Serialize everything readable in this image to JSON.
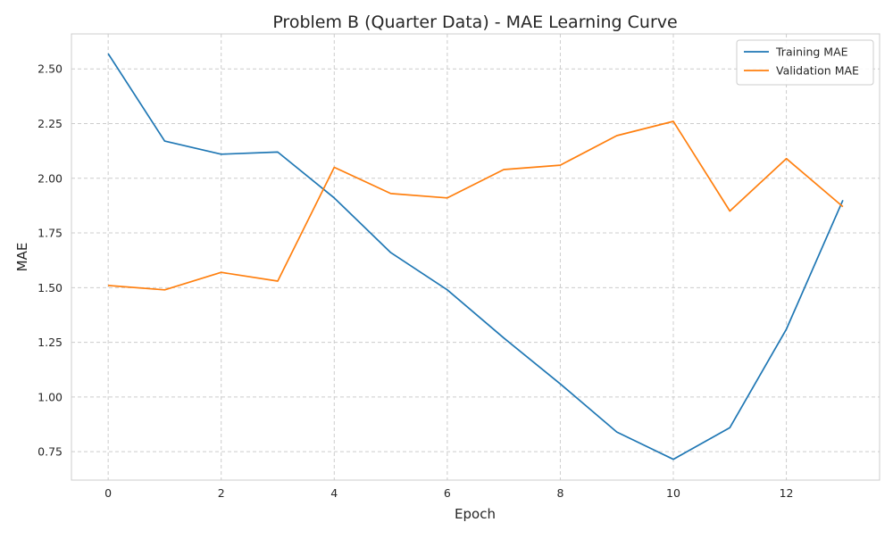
{
  "chart_data": {
    "type": "line",
    "title": "Problem B (Quarter Data) - MAE Learning Curve",
    "xlabel": "Epoch",
    "ylabel": "MAE",
    "x": [
      0,
      1,
      2,
      3,
      4,
      5,
      6,
      7,
      8,
      9,
      10,
      11,
      12,
      13
    ],
    "xlim": [
      -0.65,
      13.65
    ],
    "ylim": [
      0.62,
      2.66
    ],
    "x_ticks": [
      0,
      2,
      4,
      6,
      8,
      10,
      12
    ],
    "x_tick_labels": [
      "0",
      "2",
      "4",
      "6",
      "8",
      "10",
      "12"
    ],
    "y_ticks": [
      0.75,
      1.0,
      1.25,
      1.5,
      1.75,
      2.0,
      2.25,
      2.5
    ],
    "y_tick_labels": [
      "0.75",
      "1.00",
      "1.25",
      "1.50",
      "1.75",
      "2.00",
      "2.25",
      "2.50"
    ],
    "grid": true,
    "legend_position": "top-right",
    "series": [
      {
        "name": "Training MAE",
        "color": "#1f77b4",
        "values": [
          2.57,
          2.17,
          2.11,
          2.12,
          1.91,
          1.66,
          1.49,
          1.27,
          1.06,
          0.84,
          0.715,
          0.86,
          1.31,
          1.9
        ]
      },
      {
        "name": "Validation MAE",
        "color": "#ff7f0e",
        "values": [
          1.51,
          1.49,
          1.57,
          1.53,
          2.05,
          1.93,
          1.91,
          2.04,
          2.06,
          2.195,
          2.26,
          1.85,
          2.09,
          1.87
        ]
      }
    ]
  }
}
